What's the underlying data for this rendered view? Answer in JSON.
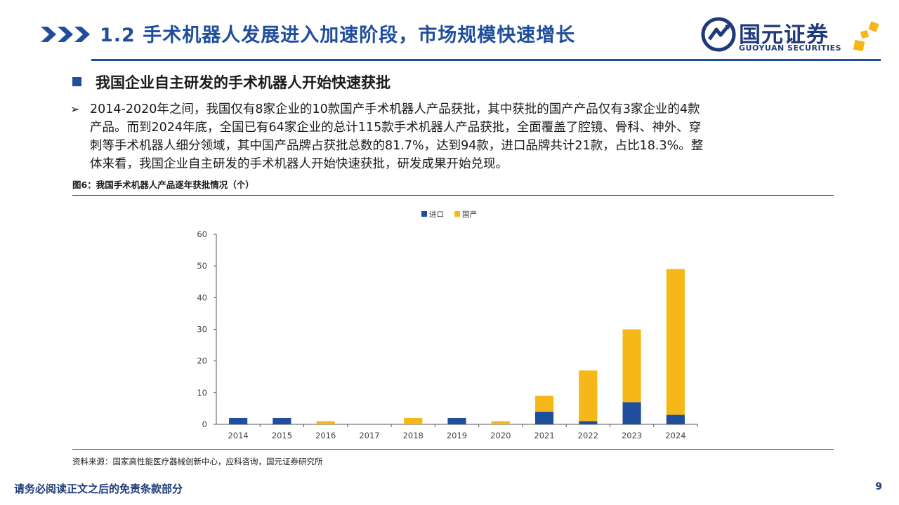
{
  "header": {
    "title": "1.2 手术机器人发展进入加速阶段，市场规模快速增长",
    "logo_cn": "国元证券",
    "logo_en": "GUOYUAN SECURITIES"
  },
  "section": {
    "heading": "我国企业自主研发的手术机器人开始快速获批",
    "paragraph_marker": "➢",
    "paragraph_lines": [
      "2014-2020年之间，我国仅有8家企业的10款国产手术机器人产品获批，其中获批的国产产品仅有3家企业的4款",
      "产品。而到2024年底，全国已有64家企业的总计115款手术机器人产品获批，全面覆盖了腔镜、骨科、神外、穿",
      "刺等手术机器人细分领域，其中国产品牌占获批总数的81.7%，达到94款，进口品牌共计21款，占比18.3%。整",
      "体来看，我国企业自主研发的手术机器人开始快速获批，研发成果开始兑现。"
    ]
  },
  "figure": {
    "caption": "图6：我国手术机器人产品逐年获批情况（个）",
    "source": "资料来源：国家高性能医疗器械创新中心，应科咨询，国元证券研究所"
  },
  "chart_data": {
    "type": "bar",
    "stacked": true,
    "categories": [
      "2014",
      "2015",
      "2016",
      "2017",
      "2018",
      "2019",
      "2020",
      "2021",
      "2022",
      "2023",
      "2024"
    ],
    "series": [
      {
        "name": "进口",
        "color": "#1f4e9c",
        "values": [
          2,
          2,
          0,
          0,
          0,
          2,
          0,
          4,
          1,
          7,
          3
        ]
      },
      {
        "name": "国产",
        "color": "#f5b818",
        "values": [
          0,
          0,
          1,
          0,
          2,
          0,
          1,
          5,
          16,
          23,
          46
        ]
      }
    ],
    "ylim": [
      0,
      60
    ],
    "yticks": [
      0,
      10,
      20,
      30,
      40,
      50,
      60
    ],
    "legend_position": "top",
    "grid": false
  },
  "footer": {
    "note": "请务必阅读正文之后的免责条款部分",
    "page": "9"
  },
  "colors": {
    "brand_blue": "#1f4e9c",
    "brand_gold": "#f5b818"
  }
}
